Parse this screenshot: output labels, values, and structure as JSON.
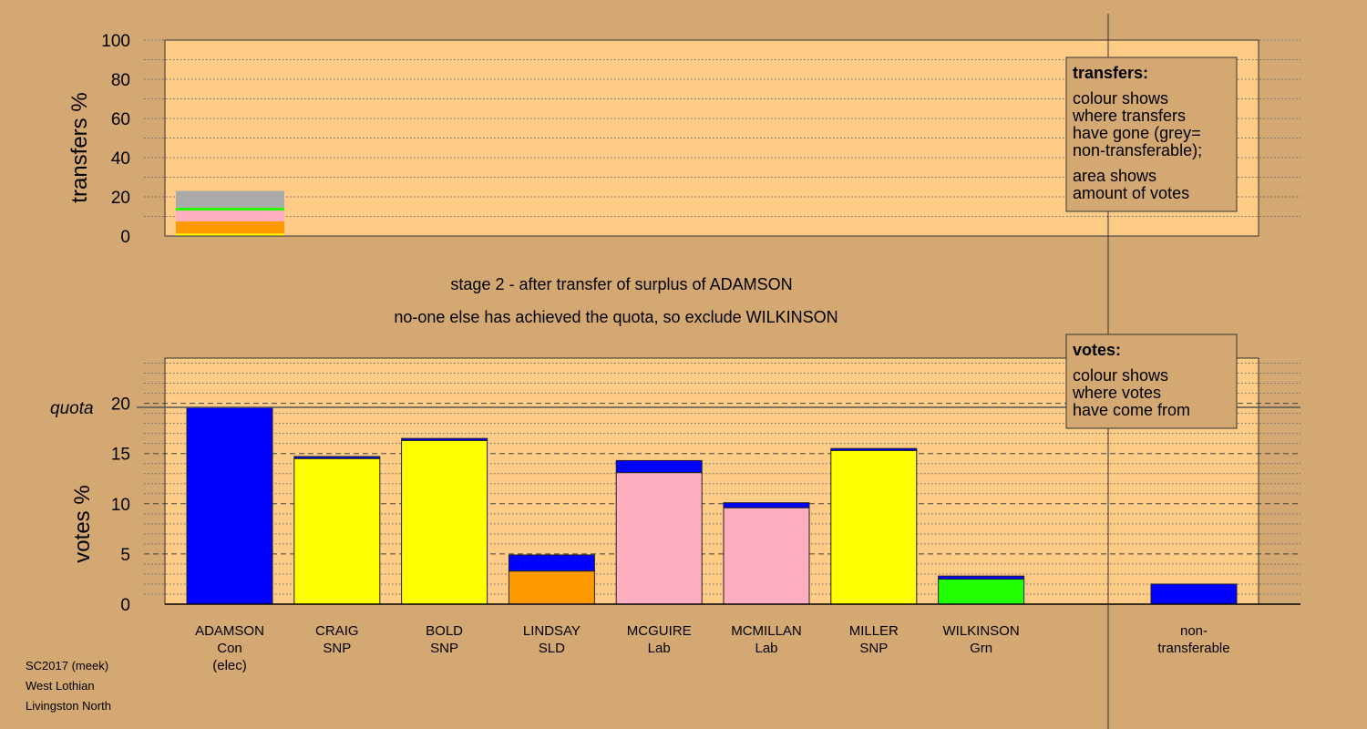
{
  "colors": {
    "background": "#d4a872",
    "plot_bg": "#ffcc88",
    "Con": "#0000ff",
    "SNP": "#ffff00",
    "SLD": "#ff9900",
    "Lab": "#ffb0c0",
    "Grn": "#22ff00",
    "nontransferable": "#aaaaaa"
  },
  "headline": {
    "line1": "stage 2 - after transfer of surplus of ADAMSON",
    "line2": "no-one else has achieved the quota, so exclude WILKINSON"
  },
  "footer": {
    "line1": "SC2017 (meek)",
    "line2": "West Lothian",
    "line3": "Livingston North"
  },
  "legend_transfers": {
    "title": "transfers:",
    "lines1": [
      "colour shows",
      "where transfers",
      "have gone (grey=",
      "non-transferable);"
    ],
    "lines2": [
      "area shows",
      "amount of votes"
    ]
  },
  "legend_votes": {
    "title": "votes:",
    "lines": [
      "colour shows",
      "where votes",
      "have come from"
    ]
  },
  "chart_data": [
    {
      "type": "bar",
      "ylabel": "transfers %",
      "ylim": [
        0,
        100
      ],
      "yticks": [
        0,
        20,
        40,
        60,
        80,
        100
      ],
      "grid": true,
      "stack": [
        {
          "party": "SNP",
          "value": 1.2
        },
        {
          "party": "SLD",
          "value": 6.3
        },
        {
          "party": "Lab",
          "value": 5.5
        },
        {
          "party": "Grn",
          "value": 1.5
        },
        {
          "party": "nontransferable",
          "value": 8.5
        }
      ]
    },
    {
      "type": "bar",
      "ylabel": "votes %",
      "ylim": [
        0,
        24.5
      ],
      "yticks": [
        0,
        5,
        10,
        15,
        20
      ],
      "quota": {
        "label": "quota",
        "value": 19.6
      },
      "grid": true,
      "candidates": [
        {
          "name": "ADAMSON",
          "party": "Con",
          "note": "(elec)",
          "segments": [
            {
              "party": "Con",
              "value": 19.6
            }
          ]
        },
        {
          "name": "CRAIG",
          "party": "SNP",
          "segments": [
            {
              "party": "SNP",
              "value": 14.5
            },
            {
              "party": "Con",
              "value": 0.2
            }
          ]
        },
        {
          "name": "BOLD",
          "party": "SNP",
          "segments": [
            {
              "party": "SNP",
              "value": 16.3
            },
            {
              "party": "Con",
              "value": 0.2
            }
          ]
        },
        {
          "name": "LINDSAY",
          "party": "SLD",
          "segments": [
            {
              "party": "SLD",
              "value": 3.3
            },
            {
              "party": "Con",
              "value": 1.6
            }
          ]
        },
        {
          "name": "MCGUIRE",
          "party": "Lab",
          "segments": [
            {
              "party": "Lab",
              "value": 13.1
            },
            {
              "party": "Con",
              "value": 1.2
            }
          ]
        },
        {
          "name": "MCMILLAN",
          "party": "Lab",
          "segments": [
            {
              "party": "Lab",
              "value": 9.6
            },
            {
              "party": "Con",
              "value": 0.5
            }
          ]
        },
        {
          "name": "MILLER",
          "party": "SNP",
          "segments": [
            {
              "party": "SNP",
              "value": 15.3
            },
            {
              "party": "Con",
              "value": 0.2
            }
          ]
        },
        {
          "name": "WILKINSON",
          "party": "Grn",
          "segments": [
            {
              "party": "Grn",
              "value": 2.5
            },
            {
              "party": "Con",
              "value": 0.3
            }
          ]
        }
      ],
      "nontransferable": {
        "label_line1": "non-",
        "label_line2": "transferable",
        "segments": [
          {
            "party": "Con",
            "value": 2.0
          }
        ]
      }
    }
  ]
}
